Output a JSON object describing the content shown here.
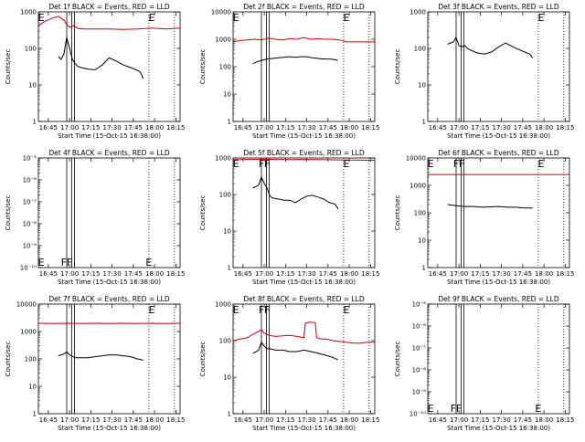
{
  "figure": {
    "xlabel": "Start Time (15-Oct-15 16:38:00)",
    "ylabel": "Counts/sec",
    "x_ticks": [
      "16:45",
      "17:00",
      "17:15",
      "17:30",
      "17:45",
      "18:00",
      "18:15"
    ],
    "x_tick_minutes": [
      7,
      22,
      37,
      52,
      67,
      82,
      97
    ],
    "x_range_minutes": [
      0,
      100
    ],
    "colors": {
      "events": "#000000",
      "lld": "#cc0000"
    }
  },
  "chart_data": [
    {
      "type": "line",
      "title": "Det 1f BLACK = Events, RED = LLD",
      "ylog": true,
      "ylim": [
        1,
        1000
      ],
      "y_ticks": [
        "1",
        "10",
        "100",
        "1000"
      ],
      "attenuator_markers_minutes": [
        20,
        23.5,
        25.5
      ],
      "dotted_markers_minutes": [
        78,
        96
      ],
      "flags": [
        {
          "label": "E",
          "x": 2,
          "pos": "top"
        },
        {
          "label": "E",
          "x": 80,
          "pos": "top"
        }
      ],
      "series": [
        {
          "name": "Events",
          "color": "#000000",
          "x": [
            14,
            16,
            18,
            20,
            22,
            24,
            26,
            28,
            30,
            35,
            40,
            45,
            50,
            55,
            60,
            65,
            70,
            72,
            74
          ],
          "y": [
            60,
            50,
            70,
            200,
            100,
            50,
            38,
            32,
            30,
            27,
            26,
            35,
            55,
            45,
            35,
            30,
            25,
            22,
            15
          ]
        },
        {
          "name": "LLD",
          "color": "#cc0000",
          "x": [
            0,
            5,
            10,
            14,
            18,
            20,
            22,
            25,
            28,
            32,
            40,
            50,
            60,
            70,
            80,
            90,
            100
          ],
          "y": [
            420,
            560,
            680,
            750,
            600,
            450,
            380,
            420,
            350,
            340,
            340,
            340,
            330,
            340,
            360,
            340,
            360
          ]
        }
      ]
    },
    {
      "type": "line",
      "title": "Det 2f BLACK = Events, RED = LLD",
      "ylog": true,
      "ylim": [
        1,
        10000
      ],
      "y_ticks": [
        "1",
        "10",
        "100",
        "1000",
        "10000"
      ],
      "attenuator_markers_minutes": [
        20,
        23.5,
        25.5
      ],
      "dotted_markers_minutes": [
        78,
        96
      ],
      "flags": [
        {
          "label": "E",
          "x": 2,
          "pos": "top"
        },
        {
          "label": "E",
          "x": 80,
          "pos": "top"
        }
      ],
      "series": [
        {
          "name": "Events",
          "color": "#000000",
          "x": [
            14,
            17,
            20,
            24,
            28,
            32,
            36,
            40,
            44,
            48,
            52,
            56,
            60,
            64,
            68,
            72,
            74
          ],
          "y": [
            130,
            150,
            170,
            190,
            200,
            210,
            220,
            230,
            220,
            230,
            230,
            210,
            200,
            190,
            190,
            180,
            170
          ]
        },
        {
          "name": "LLD",
          "color": "#cc0000",
          "x": [
            0,
            5,
            10,
            15,
            20,
            25,
            30,
            35,
            40,
            45,
            50,
            55,
            60,
            65,
            70,
            75,
            80,
            90,
            100
          ],
          "y": [
            800,
            900,
            950,
            1000,
            950,
            1100,
            1000,
            950,
            1050,
            1000,
            1150,
            1000,
            1050,
            1000,
            1000,
            950,
            800,
            800,
            800
          ]
        }
      ]
    },
    {
      "type": "line",
      "title": "Det 3f BLACK = Events, RED = LLD",
      "ylog": true,
      "ylim": [
        1,
        1000
      ],
      "y_ticks": [
        "1",
        "10",
        "100",
        "1000"
      ],
      "attenuator_markers_minutes": [
        20,
        23.5,
        25.5
      ],
      "dotted_markers_minutes": [
        78,
        96
      ],
      "flags": [
        {
          "label": "E",
          "x": 80,
          "pos": "top"
        }
      ],
      "series": [
        {
          "name": "Events",
          "color": "#000000",
          "x": [
            14,
            18,
            20,
            22,
            24,
            26,
            28,
            30,
            35,
            40,
            45,
            50,
            55,
            60,
            65,
            70,
            72,
            74
          ],
          "y": [
            130,
            150,
            200,
            120,
            110,
            120,
            100,
            90,
            75,
            70,
            80,
            110,
            140,
            110,
            90,
            75,
            70,
            55
          ]
        }
      ]
    },
    {
      "type": "line",
      "title": "Det 4f BLACK = Events, RED = LLD",
      "ylog": true,
      "ylim": [
        1e-10,
        1e-05
      ],
      "y_ticks": [
        "10⁻¹⁰",
        "10⁻⁹",
        "10⁻⁸",
        "10⁻⁷",
        "10⁻⁶",
        "10⁻⁵"
      ],
      "attenuator_markers_minutes": [
        20,
        23.5,
        25.5
      ],
      "dotted_markers_minutes": [
        78,
        96
      ],
      "flags": [
        {
          "label": "E",
          "x": 2,
          "pos": "bottom"
        },
        {
          "label": "F",
          "x": 18,
          "pos": "bottom"
        },
        {
          "label": "F",
          "x": 22,
          "pos": "bottom"
        },
        {
          "label": "E",
          "x": 78,
          "pos": "bottom"
        }
      ],
      "series": []
    },
    {
      "type": "line",
      "title": "Det 5f BLACK = Events, RED = LLD",
      "ylog": true,
      "ylim": [
        1,
        1000
      ],
      "y_ticks": [
        "1",
        "10",
        "100",
        "1000"
      ],
      "attenuator_markers_minutes": [
        20,
        23.5,
        25.5
      ],
      "dotted_markers_minutes": [
        78,
        96
      ],
      "flags": [
        {
          "label": "E",
          "x": 2,
          "pos": "top"
        },
        {
          "label": "F",
          "x": 20,
          "pos": "top"
        },
        {
          "label": "F",
          "x": 24,
          "pos": "top"
        },
        {
          "label": "E",
          "x": 80,
          "pos": "top"
        }
      ],
      "series": [
        {
          "name": "Events",
          "color": "#000000",
          "x": [
            14,
            18,
            20,
            22,
            24,
            26,
            28,
            32,
            36,
            40,
            44,
            48,
            52,
            56,
            60,
            64,
            68,
            72,
            74
          ],
          "y": [
            150,
            180,
            300,
            200,
            150,
            90,
            80,
            75,
            70,
            70,
            60,
            75,
            90,
            95,
            85,
            75,
            60,
            55,
            40
          ]
        },
        {
          "name": "LLD",
          "color": "#cc0000",
          "x": [
            0,
            10,
            20,
            30,
            40,
            50,
            60,
            70,
            80,
            90,
            100
          ],
          "y": [
            900,
            910,
            920,
            910,
            900,
            910,
            900,
            890,
            880,
            870,
            860
          ]
        }
      ]
    },
    {
      "type": "line",
      "title": "Det 6f BLACK = Events, RED = LLD",
      "ylog": true,
      "ylim": [
        1,
        10000
      ],
      "y_ticks": [
        "1",
        "10",
        "100",
        "1000",
        "10000"
      ],
      "attenuator_markers_minutes": [
        20,
        23.5,
        25.5
      ],
      "dotted_markers_minutes": [
        78,
        96
      ],
      "flags": [
        {
          "label": "E",
          "x": 2,
          "pos": "top"
        },
        {
          "label": "F",
          "x": 20,
          "pos": "top"
        },
        {
          "label": "F",
          "x": 24,
          "pos": "top"
        },
        {
          "label": "E",
          "x": 80,
          "pos": "top"
        }
      ],
      "series": [
        {
          "name": "Events",
          "color": "#000000",
          "x": [
            14,
            20,
            26,
            32,
            38,
            44,
            50,
            56,
            62,
            68,
            74
          ],
          "y": [
            200,
            180,
            170,
            170,
            160,
            165,
            170,
            160,
            160,
            150,
            150
          ]
        },
        {
          "name": "LLD",
          "color": "#cc0000",
          "x": [
            0,
            100
          ],
          "y": [
            2500,
            2500
          ]
        }
      ]
    },
    {
      "type": "line",
      "title": "Det 7f BLACK = Events, RED = LLD",
      "ylog": true,
      "ylim": [
        1,
        10000
      ],
      "y_ticks": [
        "1",
        "10",
        "100",
        "1000",
        "10000"
      ],
      "attenuator_markers_minutes": [
        20,
        23.5,
        25.5
      ],
      "dotted_markers_minutes": [
        78,
        96
      ],
      "flags": [
        {
          "label": "E",
          "x": 80,
          "pos": "top"
        }
      ],
      "series": [
        {
          "name": "Events",
          "color": "#000000",
          "x": [
            14,
            18,
            20,
            22,
            26,
            30,
            35,
            40,
            45,
            50,
            55,
            60,
            65,
            70,
            74
          ],
          "y": [
            130,
            150,
            180,
            140,
            110,
            110,
            110,
            120,
            130,
            140,
            140,
            130,
            120,
            100,
            90
          ]
        },
        {
          "name": "LLD",
          "color": "#cc0000",
          "x": [
            0,
            10,
            20,
            30,
            40,
            50,
            60,
            70,
            80,
            90,
            100
          ],
          "y": [
            2000,
            1950,
            2000,
            1950,
            2000,
            1950,
            2000,
            1950,
            2000,
            1950,
            2000
          ]
        }
      ]
    },
    {
      "type": "line",
      "title": "Det 8f BLACK = Events, RED = LLD",
      "ylog": true,
      "ylim": [
        1,
        1000
      ],
      "y_ticks": [
        "1",
        "10",
        "100",
        "1000"
      ],
      "attenuator_markers_minutes": [
        20,
        23.5,
        25.5
      ],
      "dotted_markers_minutes": [
        78,
        96
      ],
      "flags": [
        {
          "label": "E",
          "x": 2,
          "pos": "top"
        },
        {
          "label": "F",
          "x": 20,
          "pos": "top"
        },
        {
          "label": "F",
          "x": 24,
          "pos": "top"
        },
        {
          "label": "E",
          "x": 80,
          "pos": "top"
        }
      ],
      "series": [
        {
          "name": "Events",
          "color": "#000000",
          "x": [
            14,
            18,
            20,
            22,
            24,
            26,
            30,
            35,
            40,
            45,
            50,
            55,
            60,
            65,
            70,
            74
          ],
          "y": [
            45,
            55,
            90,
            70,
            60,
            60,
            55,
            55,
            50,
            50,
            55,
            50,
            45,
            40,
            35,
            30
          ]
        },
        {
          "name": "LLD",
          "color": "#cc0000",
          "x": [
            0,
            5,
            10,
            14,
            18,
            20,
            22,
            25,
            30,
            35,
            40,
            45,
            50,
            51,
            54,
            58,
            59,
            62,
            66,
            70,
            75,
            80,
            85,
            90,
            95,
            100
          ],
          "y": [
            100,
            110,
            120,
            150,
            180,
            200,
            160,
            140,
            130,
            135,
            140,
            130,
            120,
            300,
            320,
            310,
            120,
            110,
            110,
            100,
            95,
            90,
            85,
            85,
            90,
            90
          ]
        }
      ]
    },
    {
      "type": "line",
      "title": "Det 9f BLACK = Events, RED = LLD",
      "ylog": true,
      "ylim": [
        1e-10,
        1e-05
      ],
      "y_ticks": [
        "10⁻¹⁰",
        "10⁻⁹",
        "10⁻⁸",
        "10⁻⁷",
        "10⁻⁶",
        "10⁻⁵"
      ],
      "attenuator_markers_minutes": [
        20,
        23.5,
        25.5
      ],
      "dotted_markers_minutes": [
        78,
        96
      ],
      "flags": [
        {
          "label": "E",
          "x": 2,
          "pos": "bottom"
        },
        {
          "label": "F",
          "x": 18,
          "pos": "bottom"
        },
        {
          "label": "F",
          "x": 22,
          "pos": "bottom"
        },
        {
          "label": "E",
          "x": 78,
          "pos": "bottom"
        }
      ],
      "series": []
    }
  ]
}
